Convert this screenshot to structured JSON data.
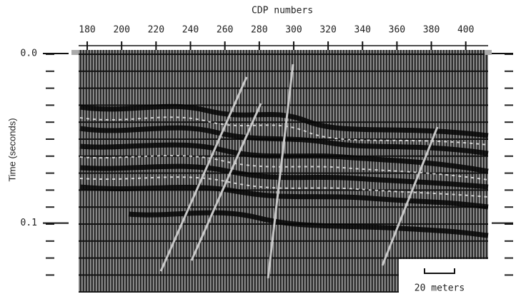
{
  "chart_data": {
    "type": "seismic",
    "title": "CDP numbers",
    "y_label": "Time (seconds)",
    "xlim": [
      175,
      413
    ],
    "xticks": [
      180,
      200,
      220,
      240,
      260,
      280,
      300,
      320,
      340,
      360,
      380,
      400
    ],
    "ylim": [
      0,
      0.141
    ],
    "yticks": [
      {
        "value": 0,
        "label": "0.0"
      },
      0.1
    ],
    "annotation": "20 meters"
  }
}
